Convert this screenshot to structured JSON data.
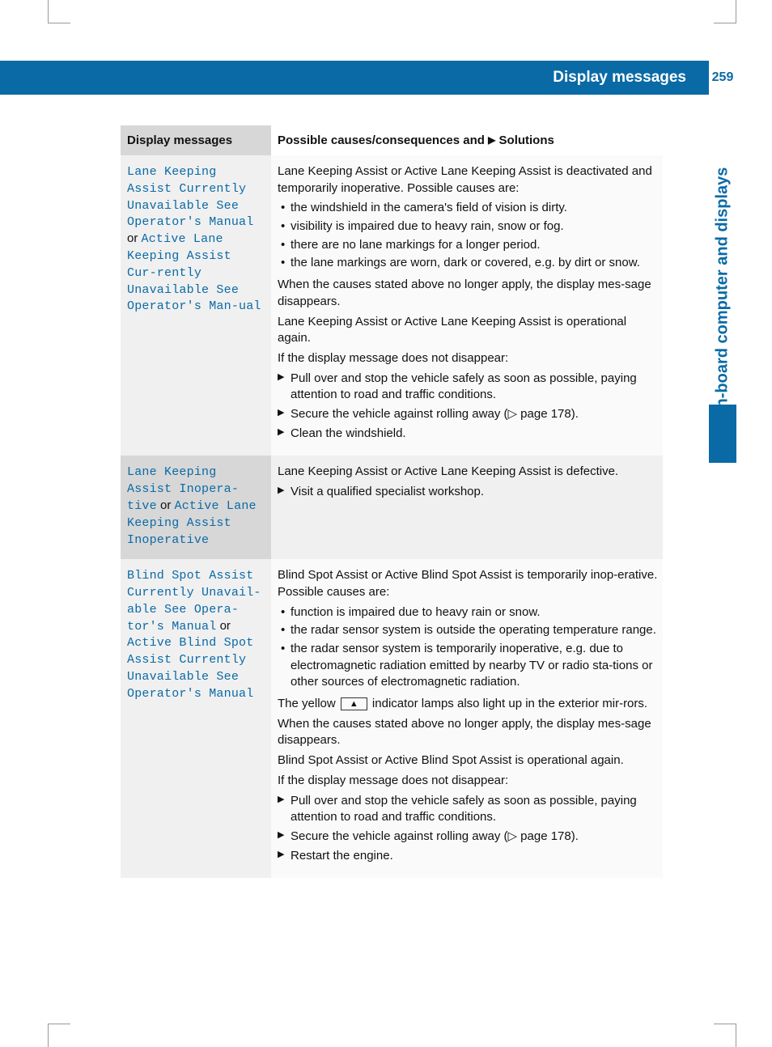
{
  "header": {
    "title": "Display messages",
    "page_number": "259"
  },
  "side_label": "On-board computer and displays",
  "colors": {
    "brand": "#0a6aa6",
    "header_text": "#ffffff",
    "row_light_left": "#f0f0f0",
    "row_dark_left": "#d7d7d7",
    "row_light_right": "#fafafa",
    "row_dark_right": "#f0f0f0",
    "text": "#111111"
  },
  "table": {
    "headers": {
      "col1": "Display messages",
      "col2_prefix": "Possible causes/consequences and ",
      "col2_suffix": " Solutions"
    },
    "rows": [
      {
        "shade": "light",
        "msg_part1": "Lane Keeping Assist Currently Unavailable See Operator's Manual",
        "or": "or",
        "msg_part2": "Active Lane Keeping Assist Cur‐rently Unavailable See Operator's Man‐ual",
        "intro": "Lane Keeping Assist or Active Lane Keeping Assist is deactivated and temporarily inoperative. Possible causes are:",
        "bullets": [
          "the windshield in the camera's field of vision is dirty.",
          "visibility is impaired due to heavy rain, snow or fog.",
          "there are no lane markings for a longer period.",
          "the lane markings are worn, dark or covered, e.g. by dirt or snow."
        ],
        "after1": "When the causes stated above no longer apply, the display mes‐sage disappears.",
        "after2": "Lane Keeping Assist or Active Lane Keeping Assist is operational again.",
        "after3": "If the display message does not disappear:",
        "actions": [
          "Pull over and stop the vehicle safely as soon as possible, paying attention to road and traffic conditions.",
          "Secure the vehicle against rolling away (▷ page 178).",
          "Clean the windshield."
        ]
      },
      {
        "shade": "dark",
        "msg_part1": "Lane Keeping Assist Inopera‐tive",
        "or": "or",
        "msg_part2": "Active Lane Keeping Assist Inoperative",
        "intro": "Lane Keeping Assist or Active Lane Keeping Assist is defective.",
        "actions": [
          "Visit a qualified specialist workshop."
        ]
      },
      {
        "shade": "light",
        "msg_part1": "Blind Spot Assist Currently Unavail‐able See Opera‐tor's Manual",
        "or": "or",
        "msg_part2": "Active Blind Spot Assist Currently Unavailable See Operator's Manual",
        "intro": "Blind Spot Assist or Active Blind Spot Assist is temporarily inop‐erative. Possible causes are:",
        "bullets": [
          "function is impaired due to heavy rain or snow.",
          "the radar sensor system is outside the operating temperature range.",
          "the radar sensor system is temporarily inoperative, e.g. due to electromagnetic radiation emitted by nearby TV or radio sta‐tions or other sources of electromagnetic radiation."
        ],
        "yellow_pre": "The yellow ",
        "yellow_post": " indicator lamps also light up in the exterior mir‐rors.",
        "after1": "When the causes stated above no longer apply, the display mes‐sage disappears.",
        "after2": "Blind Spot Assist or Active Blind Spot Assist is operational again.",
        "after3": "If the display message does not disappear:",
        "actions": [
          "Pull over and stop the vehicle safely as soon as possible, paying attention to road and traffic conditions.",
          "Secure the vehicle against rolling away (▷ page 178).",
          "Restart the engine."
        ]
      }
    ]
  }
}
